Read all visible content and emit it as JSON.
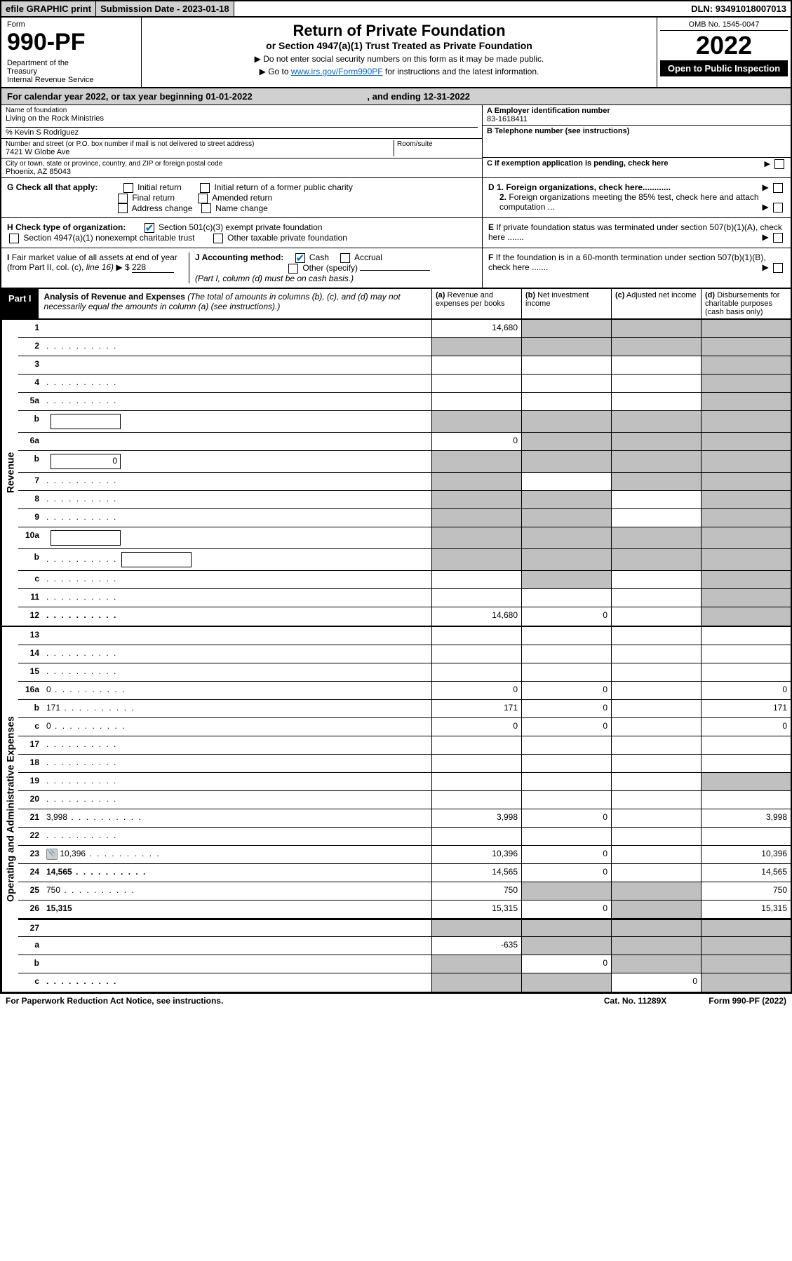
{
  "topbar": {
    "efile": "efile GRAPHIC print",
    "subdate_label": "Submission Date - ",
    "subdate": "2023-01-18",
    "dln_label": "DLN: ",
    "dln": "93491018007013"
  },
  "header": {
    "form_label": "Form",
    "form_num": "990-PF",
    "dept": "Department of the Treasury\nInternal Revenue Service",
    "title": "Return of Private Foundation",
    "subtitle": "or Section 4947(a)(1) Trust Treated as Private Foundation",
    "instr1": "▶ Do not enter social security numbers on this form as it may be made public.",
    "instr2": "▶ Go to ",
    "instr2_link": "www.irs.gov/Form990PF",
    "instr2_tail": " for instructions and the latest information.",
    "omb": "OMB No. 1545-0047",
    "year": "2022",
    "open": "Open to Public Inspection"
  },
  "calyear": {
    "text": "For calendar year 2022, or tax year beginning 01-01-2022",
    "ending_label": ", and ending ",
    "ending": "12-31-2022"
  },
  "info": {
    "name_label": "Name of foundation",
    "name": "Living on the Rock Ministries",
    "care_of": "% Kevin S Rodriguez",
    "addr_label": "Number and street (or P.O. box number if mail is not delivered to street address)",
    "addr": "7421 W Globe Ave",
    "room_label": "Room/suite",
    "city_label": "City or town, state or province, country, and ZIP or foreign postal code",
    "city": "Phoenix, AZ  85043",
    "a_label": "A Employer identification number",
    "ein": "83-1618411",
    "b_label": "B Telephone number (see instructions)",
    "c_label": "C If exemption application is pending, check here",
    "d1_label": "D 1. Foreign organizations, check here............",
    "d2_label": "2. Foreign organizations meeting the 85% test, check here and attach computation ...",
    "e_label": "E  If private foundation status was terminated under section 507(b)(1)(A), check here .......",
    "f_label": "F  If the foundation is in a 60-month termination under section 507(b)(1)(B), check here .......",
    "g_label": "G Check all that apply:",
    "g_opts": [
      "Initial return",
      "Initial return of a former public charity",
      "Final return",
      "Amended return",
      "Address change",
      "Name change"
    ],
    "h_label": "H Check type of organization:",
    "h_opts": [
      "Section 501(c)(3) exempt private foundation",
      "Section 4947(a)(1) nonexempt charitable trust",
      "Other taxable private foundation"
    ],
    "i_label": "I Fair market value of all assets at end of year (from Part II, col. (c), line 16)",
    "i_prefix": "▶ $",
    "i_value": "228",
    "j_label": "J Accounting method:",
    "j_opts": [
      "Cash",
      "Accrual",
      "Other (specify)"
    ],
    "j_note": "(Part I, column (d) must be on cash basis.)"
  },
  "part1": {
    "label": "Part I",
    "title": "Analysis of Revenue and Expenses",
    "title_note": " (The total of amounts in columns (b), (c), and (d) may not necessarily equal the amounts in column (a) (see instructions).)",
    "cols": {
      "a": "(a)  Revenue and expenses per books",
      "b": "(b)  Net investment income",
      "c": "(c)  Adjusted net income",
      "d": "(d)  Disbursements for charitable purposes (cash basis only)"
    }
  },
  "sections": {
    "revenue": "Revenue",
    "expenses": "Operating and Administrative Expenses"
  },
  "rows": [
    {
      "n": "1",
      "d": "",
      "a": "14,680",
      "b": "",
      "c": "",
      "shB": true,
      "shC": true,
      "shD": true
    },
    {
      "n": "2",
      "d": "",
      "a": "",
      "b": "",
      "c": "",
      "shA": true,
      "shB": true,
      "shC": true,
      "shD": true,
      "dots": true
    },
    {
      "n": "3",
      "d": "",
      "a": "",
      "b": "",
      "c": "",
      "shD": true
    },
    {
      "n": "4",
      "d": "",
      "a": "",
      "b": "",
      "c": "",
      "shD": true,
      "dots": true
    },
    {
      "n": "5a",
      "d": "",
      "a": "",
      "b": "",
      "c": "",
      "shD": true,
      "dots": true
    },
    {
      "n": "b",
      "d": "",
      "a": "",
      "b": "",
      "c": "",
      "sub": true,
      "shA": true,
      "shB": true,
      "shC": true,
      "shD": true
    },
    {
      "n": "6a",
      "d": "",
      "a": "0",
      "b": "",
      "c": "",
      "shB": true,
      "shC": true,
      "shD": true
    },
    {
      "n": "b",
      "d": "",
      "a": "",
      "b": "",
      "c": "",
      "sub": true,
      "subval": "0",
      "shA": true,
      "shB": true,
      "shC": true,
      "shD": true
    },
    {
      "n": "7",
      "d": "",
      "a": "",
      "b": "",
      "c": "",
      "shA": true,
      "shC": true,
      "shD": true,
      "dots": true
    },
    {
      "n": "8",
      "d": "",
      "a": "",
      "b": "",
      "c": "",
      "shA": true,
      "shB": true,
      "shD": true,
      "dots": true
    },
    {
      "n": "9",
      "d": "",
      "a": "",
      "b": "",
      "c": "",
      "shA": true,
      "shB": true,
      "shD": true,
      "dots": true
    },
    {
      "n": "10a",
      "d": "",
      "a": "",
      "b": "",
      "c": "",
      "sub": true,
      "shA": true,
      "shB": true,
      "shC": true,
      "shD": true
    },
    {
      "n": "b",
      "d": "",
      "a": "",
      "b": "",
      "c": "",
      "sub": true,
      "shA": true,
      "shB": true,
      "shC": true,
      "shD": true,
      "dots": true
    },
    {
      "n": "c",
      "d": "",
      "a": "",
      "b": "",
      "c": "",
      "shB": true,
      "shD": true,
      "dots": true
    },
    {
      "n": "11",
      "d": "",
      "a": "",
      "b": "",
      "c": "",
      "shD": true,
      "dots": true
    },
    {
      "n": "12",
      "d": "",
      "a": "14,680",
      "b": "0",
      "c": "",
      "bold": true,
      "shD": true,
      "dots": true
    }
  ],
  "exp_rows": [
    {
      "n": "13",
      "d": "",
      "a": "",
      "b": "",
      "c": ""
    },
    {
      "n": "14",
      "d": "",
      "a": "",
      "b": "",
      "c": "",
      "dots": true
    },
    {
      "n": "15",
      "d": "",
      "a": "",
      "b": "",
      "c": "",
      "dots": true
    },
    {
      "n": "16a",
      "d": "0",
      "a": "0",
      "b": "0",
      "c": "",
      "dots": true
    },
    {
      "n": "b",
      "d": "171",
      "a": "171",
      "b": "0",
      "c": "",
      "dots": true
    },
    {
      "n": "c",
      "d": "0",
      "a": "0",
      "b": "0",
      "c": "",
      "dots": true
    },
    {
      "n": "17",
      "d": "",
      "a": "",
      "b": "",
      "c": "",
      "dots": true
    },
    {
      "n": "18",
      "d": "",
      "a": "",
      "b": "",
      "c": "",
      "dots": true
    },
    {
      "n": "19",
      "d": "",
      "a": "",
      "b": "",
      "c": "",
      "shD": true,
      "dots": true
    },
    {
      "n": "20",
      "d": "",
      "a": "",
      "b": "",
      "c": "",
      "dots": true
    },
    {
      "n": "21",
      "d": "3,998",
      "a": "3,998",
      "b": "0",
      "c": "",
      "dots": true
    },
    {
      "n": "22",
      "d": "",
      "a": "",
      "b": "",
      "c": "",
      "dots": true
    },
    {
      "n": "23",
      "d": "10,396",
      "a": "10,396",
      "b": "0",
      "c": "",
      "attach": true,
      "dots": true
    },
    {
      "n": "24",
      "d": "14,565",
      "a": "14,565",
      "b": "0",
      "c": "",
      "bold": true,
      "dots": true
    },
    {
      "n": "25",
      "d": "750",
      "a": "750",
      "b": "",
      "c": "",
      "shB": true,
      "shC": true,
      "dots": true
    },
    {
      "n": "26",
      "d": "15,315",
      "a": "15,315",
      "b": "0",
      "c": "",
      "bold": true,
      "shC": true
    },
    {
      "n": "27",
      "d": "",
      "a": "",
      "b": "",
      "c": "",
      "shA": true,
      "shB": true,
      "shC": true,
      "shD": true
    },
    {
      "n": "a",
      "d": "",
      "a": "-635",
      "b": "",
      "c": "",
      "bold": true,
      "shB": true,
      "shC": true,
      "shD": true
    },
    {
      "n": "b",
      "d": "",
      "a": "",
      "b": "0",
      "c": "",
      "bold": true,
      "shA": true,
      "shC": true,
      "shD": true
    },
    {
      "n": "c",
      "d": "",
      "a": "",
      "b": "",
      "c": "0",
      "bold": true,
      "shA": true,
      "shB": true,
      "shD": true,
      "dots": true
    }
  ],
  "footer": {
    "left": "For Paperwork Reduction Act Notice, see instructions.",
    "mid": "Cat. No. 11289X",
    "right": "Form 990-PF (2022)"
  }
}
